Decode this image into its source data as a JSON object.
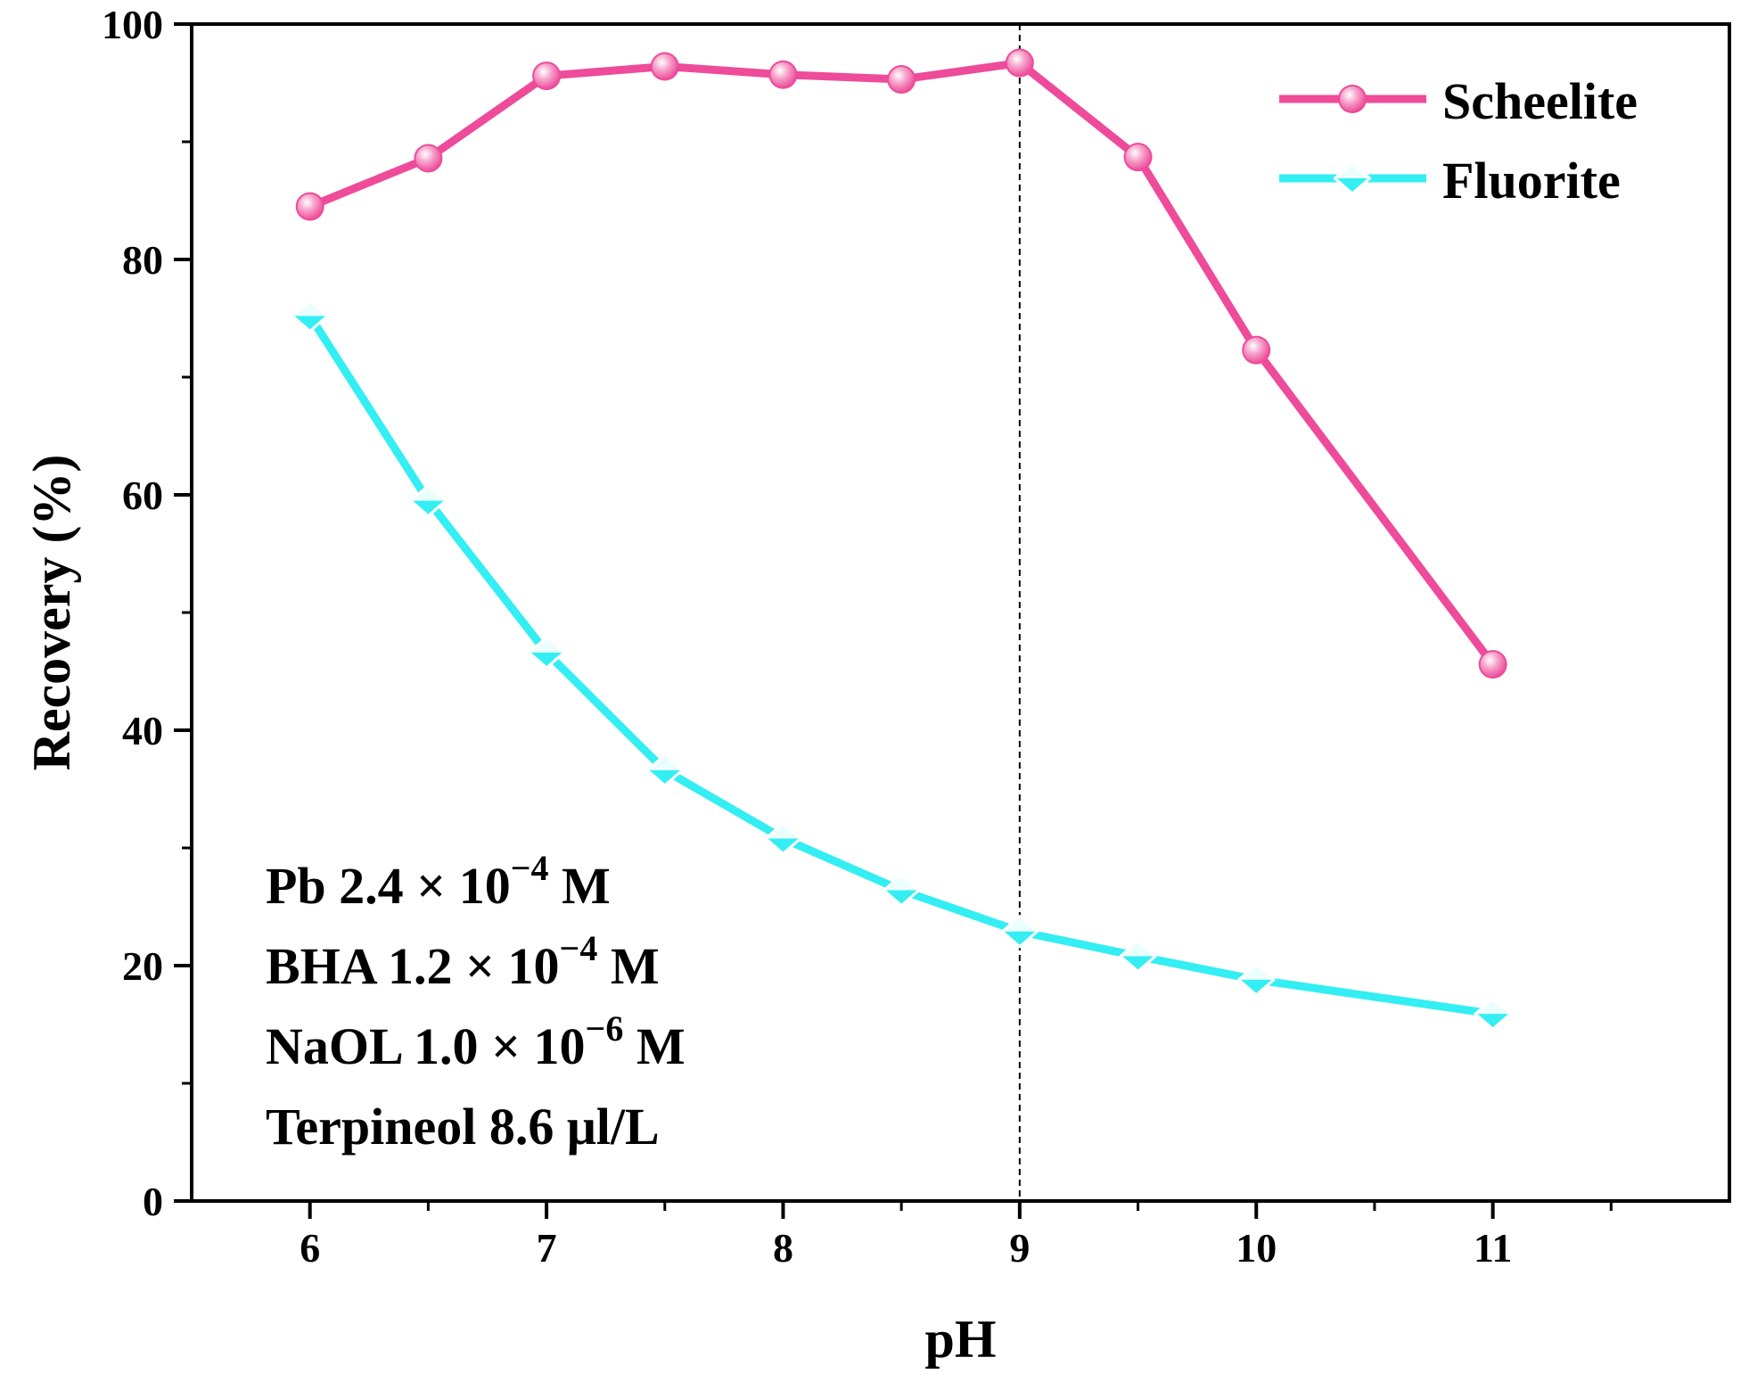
{
  "chart_data": {
    "type": "line",
    "xlabel": "pH",
    "ylabel": "Recovery (%)",
    "xlim": [
      5.5,
      12.0
    ],
    "ylim": [
      0,
      100
    ],
    "x_ticks": [
      6,
      7,
      8,
      9,
      10,
      11
    ],
    "x_tick_labels": [
      "6",
      "7",
      "8",
      "9",
      "10",
      "11"
    ],
    "x_minor_ticks": [
      6.5,
      7.5,
      8.5,
      9.5,
      10.5,
      11.5
    ],
    "y_ticks": [
      0,
      20,
      40,
      60,
      80,
      100
    ],
    "y_tick_labels": [
      "0",
      "20",
      "40",
      "60",
      "80",
      "100"
    ],
    "y_minor_ticks": [
      10,
      30,
      50,
      70,
      90
    ],
    "grid": false,
    "legend_position": "top-right",
    "reference_line": {
      "x": 9,
      "style": "dashed"
    },
    "series": [
      {
        "name": "Scheelite",
        "color": "#ee4b9a",
        "marker": "circle",
        "x": [
          6,
          6.5,
          7,
          7.5,
          8,
          8.5,
          9,
          9.5,
          10,
          11
        ],
        "values": [
          84.5,
          88.6,
          95.6,
          96.4,
          95.7,
          95.3,
          96.7,
          88.7,
          72.3,
          45.6
        ]
      },
      {
        "name": "Fluorite",
        "color": "#33eef2",
        "marker": "diamond",
        "x": [
          6,
          6.5,
          7,
          7.5,
          8,
          8.5,
          9,
          9.5,
          10,
          11
        ],
        "values": [
          75.2,
          59.5,
          46.6,
          36.6,
          30.8,
          26.4,
          22.9,
          20.8,
          18.8,
          15.9
        ]
      }
    ],
    "annotation": {
      "lines": [
        {
          "prefix": "Pb 2.4 × 10",
          "exponent": "−4",
          "suffix": " M"
        },
        {
          "prefix": "BHA 1.2 × 10",
          "exponent": "−4",
          "suffix": " M"
        },
        {
          "prefix": "NaOL 1.0 × 10",
          "exponent": "−6",
          "suffix": " M"
        },
        {
          "prefix": "Terpineol  8.6 μl/L",
          "exponent": "",
          "suffix": ""
        }
      ]
    }
  }
}
